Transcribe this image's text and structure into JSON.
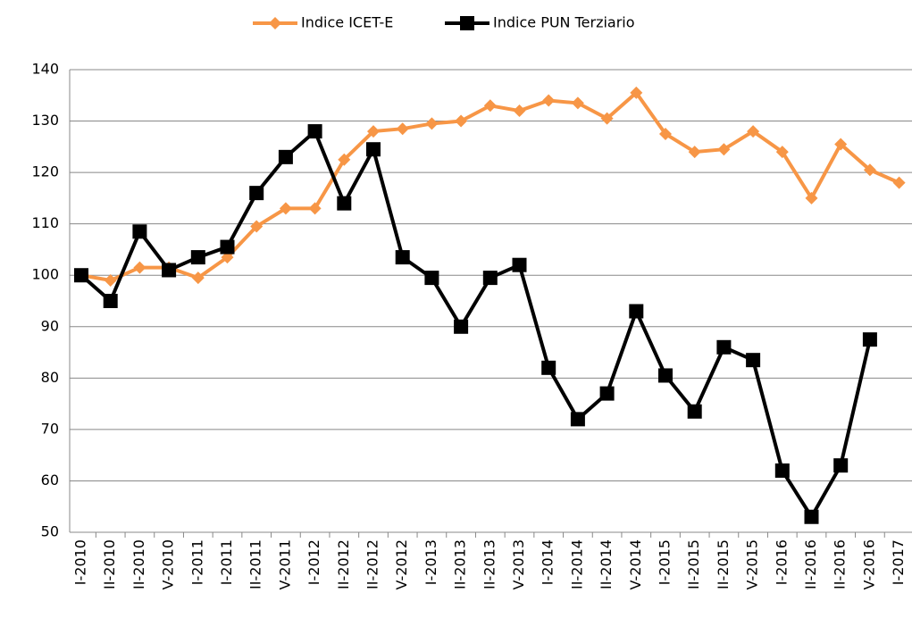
{
  "chart_data": {
    "type": "line",
    "categories": [
      "I-2010",
      "II-2010",
      "II-2010",
      "V-2010",
      "I-2011",
      "I-2011",
      "II-2011",
      "V-2011",
      "I-2012",
      "II-2012",
      "II-2012",
      "V-2012",
      "I-2013",
      "II-2013",
      "II-2013",
      "V-2013",
      "I-2014",
      "II-2014",
      "II-2014",
      "V-2014",
      "I-2015",
      "II-2015",
      "II-2015",
      "V-2015",
      "I-2016",
      "II-2016",
      "II-2016",
      "V-2016",
      "I-2017"
    ],
    "series": [
      {
        "name": "Indice ICET-E",
        "color": "#f79646",
        "marker": "diamond",
        "values": [
          100,
          99,
          101.5,
          101.5,
          99.5,
          103.5,
          109.5,
          113,
          113,
          122.5,
          128,
          128.5,
          129.5,
          130,
          133,
          132,
          134,
          133.5,
          130.5,
          135.5,
          127.5,
          124,
          124.5,
          128,
          124,
          115,
          125.5,
          120.5,
          118
        ]
      },
      {
        "name": "Indice PUN Terziario",
        "color": "#000000",
        "marker": "square",
        "values": [
          100,
          95,
          108.5,
          101,
          103.5,
          105.5,
          116,
          123,
          128,
          114,
          124.5,
          103.5,
          99.5,
          90,
          99.5,
          102,
          82,
          72,
          77,
          93,
          80.5,
          73.5,
          86,
          83.5,
          62,
          53,
          63,
          87.5,
          null
        ]
      }
    ],
    "ylim": [
      50,
      140
    ],
    "yticks": [
      50,
      60,
      70,
      80,
      90,
      100,
      110,
      120,
      130,
      140
    ],
    "grid": true,
    "legend": "top"
  }
}
